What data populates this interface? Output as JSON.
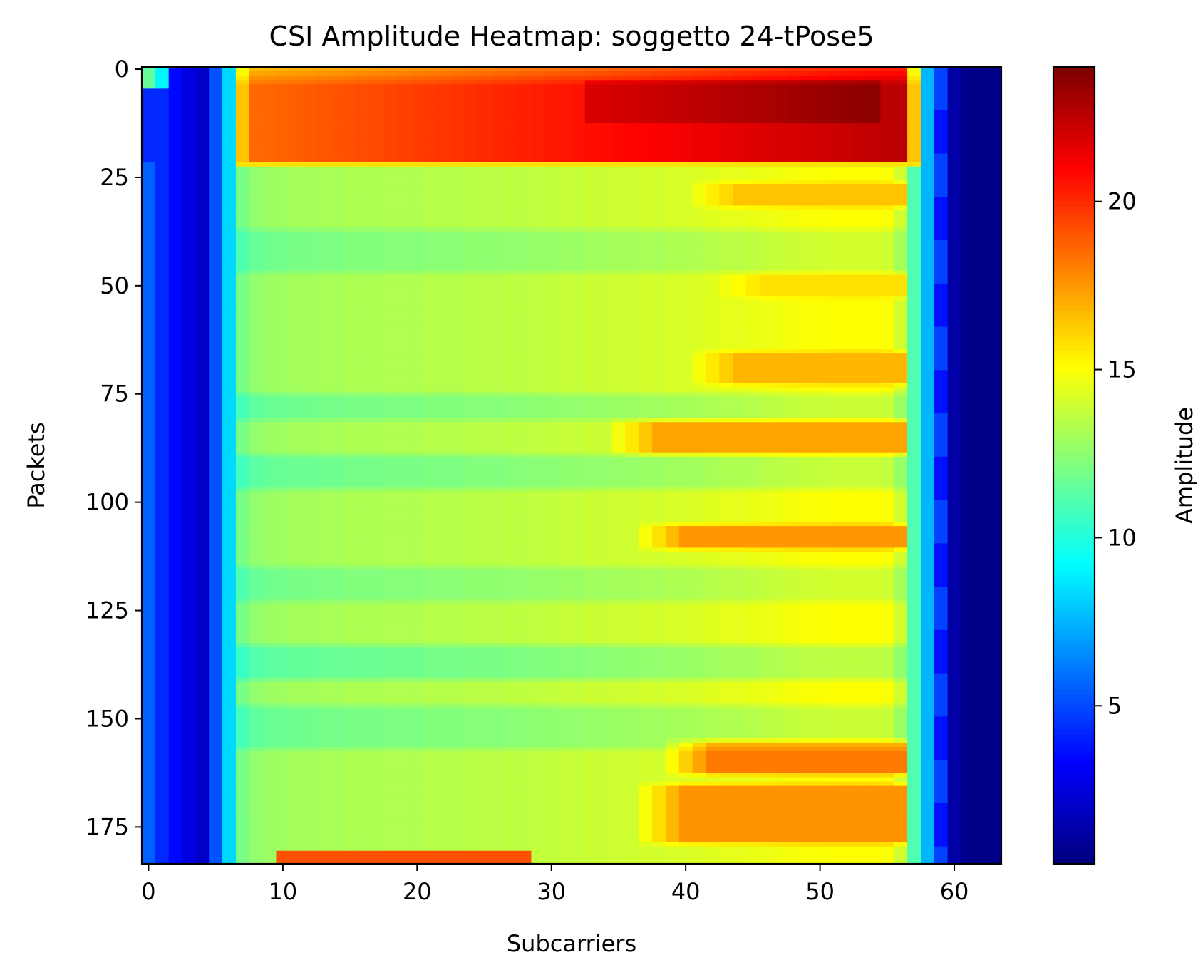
{
  "chart_data": {
    "type": "heatmap",
    "title": "CSI Amplitude Heatmap: soggetto 24-tPose5",
    "xlabel": "Subcarriers",
    "ylabel": "Packets",
    "colorbar_label": "Amplitude",
    "colormap": "jet",
    "n_subcarriers": 64,
    "n_packets": 184,
    "xlim": [
      -0.5,
      63.5
    ],
    "ylim": [
      183.5,
      -0.5
    ],
    "clim": [
      0.3,
      24
    ],
    "x_ticks": [
      0,
      10,
      20,
      30,
      40,
      50,
      60
    ],
    "y_ticks": [
      0,
      25,
      50,
      75,
      100,
      125,
      150,
      175
    ],
    "colorbar_ticks": [
      5,
      10,
      15,
      20
    ],
    "grid": false,
    "column_base_amplitude": [
      5.5,
      4.2,
      3.4,
      2.6,
      2.0,
      5.2,
      8.3,
      12.0,
      12.6,
      12.8,
      12.9,
      13.0,
      13.0,
      13.1,
      13.1,
      13.2,
      13.2,
      13.2,
      13.3,
      13.3,
      13.3,
      13.4,
      13.4,
      13.4,
      13.5,
      13.5,
      13.5,
      13.6,
      13.6,
      13.7,
      13.7,
      13.8,
      13.8,
      13.9,
      13.9,
      14.0,
      14.0,
      14.1,
      14.1,
      14.2,
      14.2,
      14.3,
      14.4,
      14.5,
      14.5,
      14.6,
      14.7,
      14.8,
      14.9,
      15.0,
      15.0,
      15.1,
      15.1,
      15.1,
      15.1,
      15.0,
      14.0,
      11.0,
      7.5,
      4.5,
      1.2,
      0.6,
      0.5,
      0.5
    ],
    "regions": [
      {
        "name": "top-burst",
        "packets": [
          0,
          22
        ],
        "subcarriers": [
          7,
          57
        ],
        "amplitude_range": [
          18,
          24
        ]
      },
      {
        "name": "stable-band",
        "packets": [
          22,
          183
        ],
        "subcarriers": [
          7,
          56
        ],
        "amplitude_range": [
          11,
          17
        ]
      },
      {
        "name": "bottom-burst",
        "packets": [
          181,
          183
        ],
        "subcarriers": [
          10,
          28
        ],
        "amplitude_range": [
          18,
          20
        ]
      }
    ],
    "hot_bands": [
      {
        "packets": [
          27,
          31
        ],
        "subcarriers": [
          44,
          56
        ],
        "peak": 16.5
      },
      {
        "packets": [
          48,
          52
        ],
        "subcarriers": [
          46,
          56
        ],
        "peak": 15.8
      },
      {
        "packets": [
          66,
          72
        ],
        "subcarriers": [
          44,
          56
        ],
        "peak": 16.8
      },
      {
        "packets": [
          82,
          88
        ],
        "subcarriers": [
          38,
          56
        ],
        "peak": 17.2
      },
      {
        "packets": [
          106,
          110
        ],
        "subcarriers": [
          40,
          56
        ],
        "peak": 17.5
      },
      {
        "packets": [
          156,
          162
        ],
        "subcarriers": [
          42,
          56
        ],
        "peak": 18.2
      },
      {
        "packets": [
          166,
          178
        ],
        "subcarriers": [
          40,
          56
        ],
        "peak": 17.6
      }
    ],
    "cool_bands": [
      {
        "packets": [
          38,
          46
        ],
        "depth": 1.0
      },
      {
        "packets": [
          76,
          80
        ],
        "depth": 1.2
      },
      {
        "packets": [
          90,
          96
        ],
        "depth": 1.3
      },
      {
        "packets": [
          116,
          122
        ],
        "depth": 1.0
      },
      {
        "packets": [
          134,
          140
        ],
        "depth": 1.5
      },
      {
        "packets": [
          148,
          156
        ],
        "depth": 1.2
      }
    ]
  }
}
